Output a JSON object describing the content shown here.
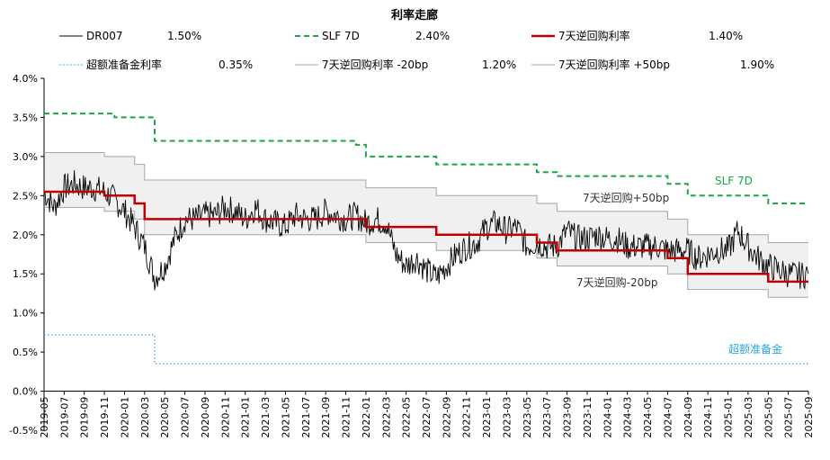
{
  "chart_data": {
    "type": "line",
    "title": "利率走廊",
    "ylim": [
      -0.5,
      4.0
    ],
    "y_ticks": [
      "4.0%",
      "3.5%",
      "3.0%",
      "2.5%",
      "2.0%",
      "1.5%",
      "1.0%",
      "0.5%",
      "0.0%",
      "-0.5%"
    ],
    "y_tick_values": [
      4.0,
      3.5,
      3.0,
      2.5,
      2.0,
      1.5,
      1.0,
      0.5,
      0.0,
      -0.5
    ],
    "x_range": [
      "2019-05",
      "2025-09"
    ],
    "x_ticks": [
      "2019-05",
      "2019-07",
      "2019-09",
      "2019-11",
      "2020-01",
      "2020-03",
      "2020-05",
      "2020-07",
      "2020-09",
      "2020-11",
      "2021-01",
      "2021-03",
      "2021-05",
      "2021-07",
      "2021-09",
      "2021-11",
      "2022-01",
      "2022-03",
      "2022-05",
      "2022-07",
      "2022-09",
      "2022-11",
      "2023-01",
      "2023-03",
      "2023-05",
      "2023-07",
      "2023-09",
      "2023-11",
      "2024-01",
      "2024-03",
      "2024-05",
      "2024-07",
      "2024-09",
      "2024-11",
      "2025-01",
      "2025-03",
      "2025-05",
      "2025-07",
      "2025-09"
    ],
    "legend": [
      {
        "label": "DR007",
        "value": "1.50%",
        "color": "#000000",
        "style": "thin-solid"
      },
      {
        "label": "SLF 7D",
        "value": "2.40%",
        "color": "#1aa54a",
        "style": "dashed"
      },
      {
        "label": "7天逆回购利率",
        "value": "1.40%",
        "color": "#c00000",
        "style": "thick-solid"
      },
      {
        "label": "超额准备金利率",
        "value": "0.35%",
        "color": "#29a9e0",
        "style": "dotted"
      },
      {
        "label": "7天逆回购利率 -20bp",
        "value": "1.20%",
        "color": "#a6a6a6",
        "style": "thin-solid"
      },
      {
        "label": "7天逆回购利率 +50bp",
        "value": "1.90%",
        "color": "#a6a6a6",
        "style": "thin-solid"
      }
    ],
    "annotations": {
      "slf": "SLF 7D",
      "upper": "7天逆回购+50bp",
      "lower": "7天逆回购-20bp",
      "ioer": "超额准备金"
    },
    "series": [
      {
        "name": "SLF 7D",
        "steps": [
          [
            "2019-05",
            3.55
          ],
          [
            "2019-12",
            3.5
          ],
          [
            "2020-04",
            3.2
          ],
          [
            "2020-11",
            3.2
          ],
          [
            "2021-12",
            3.15
          ],
          [
            "2022-01",
            3.0
          ],
          [
            "2022-08",
            2.9
          ],
          [
            "2023-06",
            2.8
          ],
          [
            "2023-08",
            2.75
          ],
          [
            "2024-07",
            2.65
          ],
          [
            "2024-09",
            2.5
          ],
          [
            "2025-05",
            2.4
          ],
          [
            "2025-09",
            2.4
          ]
        ]
      },
      {
        "name": "7天逆回购利率",
        "steps": [
          [
            "2019-05",
            2.55
          ],
          [
            "2019-11",
            2.5
          ],
          [
            "2020-02",
            2.4
          ],
          [
            "2020-03",
            2.2
          ],
          [
            "2022-01",
            2.1
          ],
          [
            "2022-08",
            2.0
          ],
          [
            "2023-06",
            1.9
          ],
          [
            "2023-08",
            1.8
          ],
          [
            "2024-07",
            1.7
          ],
          [
            "2024-09",
            1.5
          ],
          [
            "2025-05",
            1.4
          ],
          [
            "2025-09",
            1.4
          ]
        ]
      },
      {
        "name": "7天逆回购利率 +50bp",
        "steps": [
          [
            "2019-05",
            3.05
          ],
          [
            "2019-11",
            3.0
          ],
          [
            "2020-02",
            2.9
          ],
          [
            "2020-03",
            2.7
          ],
          [
            "2022-01",
            2.6
          ],
          [
            "2022-08",
            2.5
          ],
          [
            "2023-06",
            2.4
          ],
          [
            "2023-08",
            2.3
          ],
          [
            "2024-07",
            2.2
          ],
          [
            "2024-09",
            2.0
          ],
          [
            "2025-05",
            1.9
          ],
          [
            "2025-09",
            1.9
          ]
        ]
      },
      {
        "name": "7天逆回购利率 -20bp",
        "steps": [
          [
            "2019-05",
            2.35
          ],
          [
            "2019-11",
            2.3
          ],
          [
            "2020-02",
            2.2
          ],
          [
            "2020-03",
            2.0
          ],
          [
            "2022-01",
            1.9
          ],
          [
            "2022-08",
            1.8
          ],
          [
            "2023-06",
            1.7
          ],
          [
            "2023-08",
            1.6
          ],
          [
            "2024-07",
            1.5
          ],
          [
            "2024-09",
            1.3
          ],
          [
            "2025-05",
            1.2
          ],
          [
            "2025-09",
            1.2
          ]
        ]
      },
      {
        "name": "超额准备金利率",
        "steps": [
          [
            "2019-05",
            0.72
          ],
          [
            "2020-04",
            0.35
          ],
          [
            "2025-09",
            0.35
          ]
        ]
      },
      {
        "name": "DR007",
        "points": [
          [
            "2019-05",
            2.55
          ],
          [
            "2019-06",
            2.35
          ],
          [
            "2019-07",
            2.6
          ],
          [
            "2019-08",
            2.65
          ],
          [
            "2019-09",
            2.6
          ],
          [
            "2019-10",
            2.6
          ],
          [
            "2019-11",
            2.55
          ],
          [
            "2019-12",
            2.45
          ],
          [
            "2020-01",
            2.3
          ],
          [
            "2020-02",
            2.1
          ],
          [
            "2020-03",
            1.85
          ],
          [
            "2020-04",
            1.45
          ],
          [
            "2020-05",
            1.6
          ],
          [
            "2020-06",
            1.95
          ],
          [
            "2020-07",
            2.2
          ],
          [
            "2020-08",
            2.2
          ],
          [
            "2020-09",
            2.25
          ],
          [
            "2020-10",
            2.25
          ],
          [
            "2020-11",
            2.35
          ],
          [
            "2020-12",
            2.3
          ],
          [
            "2021-01",
            2.2
          ],
          [
            "2021-02",
            2.35
          ],
          [
            "2021-03",
            2.2
          ],
          [
            "2021-04",
            2.15
          ],
          [
            "2021-05",
            2.1
          ],
          [
            "2021-06",
            2.25
          ],
          [
            "2021-07",
            2.2
          ],
          [
            "2021-08",
            2.2
          ],
          [
            "2021-09",
            2.3
          ],
          [
            "2021-10",
            2.25
          ],
          [
            "2021-11",
            2.2
          ],
          [
            "2021-12",
            2.25
          ],
          [
            "2022-01",
            2.15
          ],
          [
            "2022-02",
            2.2
          ],
          [
            "2022-03",
            2.15
          ],
          [
            "2022-04",
            1.75
          ],
          [
            "2022-05",
            1.6
          ],
          [
            "2022-06",
            1.7
          ],
          [
            "2022-07",
            1.55
          ],
          [
            "2022-08",
            1.45
          ],
          [
            "2022-09",
            1.6
          ],
          [
            "2022-10",
            1.75
          ],
          [
            "2022-11",
            1.85
          ],
          [
            "2022-12",
            1.9
          ],
          [
            "2023-01",
            2.1
          ],
          [
            "2023-02",
            2.15
          ],
          [
            "2023-03",
            2.05
          ],
          [
            "2023-04",
            2.1
          ],
          [
            "2023-05",
            1.85
          ],
          [
            "2023-06",
            1.9
          ],
          [
            "2023-07",
            1.85
          ],
          [
            "2023-08",
            1.85
          ],
          [
            "2023-09",
            2.05
          ],
          [
            "2023-10",
            1.95
          ],
          [
            "2023-11",
            1.95
          ],
          [
            "2023-12",
            2.0
          ],
          [
            "2024-01",
            1.95
          ],
          [
            "2024-02",
            1.95
          ],
          [
            "2024-03",
            1.85
          ],
          [
            "2024-04",
            1.85
          ],
          [
            "2024-05",
            1.85
          ],
          [
            "2024-06",
            1.85
          ],
          [
            "2024-07",
            1.8
          ],
          [
            "2024-08",
            1.8
          ],
          [
            "2024-09",
            1.8
          ],
          [
            "2024-10",
            1.7
          ],
          [
            "2024-11",
            1.75
          ],
          [
            "2024-12",
            1.8
          ],
          [
            "2025-01",
            1.8
          ],
          [
            "2025-02",
            2.05
          ],
          [
            "2025-03",
            1.85
          ],
          [
            "2025-04",
            1.7
          ],
          [
            "2025-05",
            1.6
          ],
          [
            "2025-06",
            1.55
          ],
          [
            "2025-07",
            1.5
          ],
          [
            "2025-08",
            1.48
          ],
          [
            "2025-09",
            1.5
          ]
        ]
      }
    ]
  }
}
